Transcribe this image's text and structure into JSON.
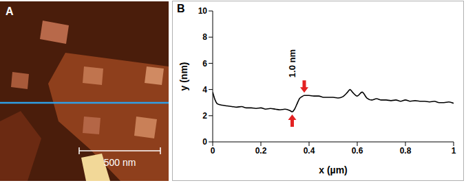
{
  "image_panel": {
    "label": "A",
    "scale_bar": "500 nm"
  },
  "chart_data": {
    "type": "line",
    "panel_label": "B",
    "x_label": "x (µm)",
    "y_label": "y (nm)",
    "x": [
      0,
      0.01,
      0.02,
      0.04,
      0.06,
      0.08,
      0.1,
      0.12,
      0.14,
      0.16,
      0.18,
      0.2,
      0.22,
      0.24,
      0.26,
      0.28,
      0.3,
      0.32,
      0.33,
      0.34,
      0.35,
      0.36,
      0.37,
      0.38,
      0.4,
      0.42,
      0.44,
      0.46,
      0.48,
      0.5,
      0.52,
      0.54,
      0.56,
      0.57,
      0.58,
      0.6,
      0.62,
      0.64,
      0.66,
      0.68,
      0.7,
      0.72,
      0.74,
      0.76,
      0.78,
      0.8,
      0.82,
      0.84,
      0.86,
      0.88,
      0.9,
      0.92,
      0.94,
      0.96,
      0.98,
      1
    ],
    "values": [
      3.8,
      3.2,
      2.9,
      2.8,
      2.75,
      2.7,
      2.65,
      2.7,
      2.6,
      2.6,
      2.55,
      2.6,
      2.5,
      2.55,
      2.5,
      2.45,
      2.5,
      2.4,
      2.3,
      2.5,
      2.9,
      3.3,
      3.45,
      3.55,
      3.55,
      3.5,
      3.5,
      3.4,
      3.4,
      3.4,
      3.35,
      3.45,
      3.8,
      4.0,
      3.8,
      3.5,
      3.8,
      3.35,
      3.2,
      3.3,
      3.2,
      3.2,
      3.15,
      3.2,
      3.1,
      3.2,
      3.1,
      3.15,
      3.1,
      3.1,
      3.05,
      3.1,
      3.0,
      3.0,
      3.05,
      2.95
    ],
    "color": "#000000",
    "xlim": [
      0,
      1
    ],
    "xticks": [
      0,
      0.2,
      0.4,
      0.6,
      0.8,
      1
    ],
    "ylim": [
      0,
      10
    ],
    "yticks": [
      0,
      2,
      4,
      6,
      8,
      10
    ],
    "grid": false,
    "annotations": [
      {
        "text": "1.0 nm"
      }
    ]
  }
}
